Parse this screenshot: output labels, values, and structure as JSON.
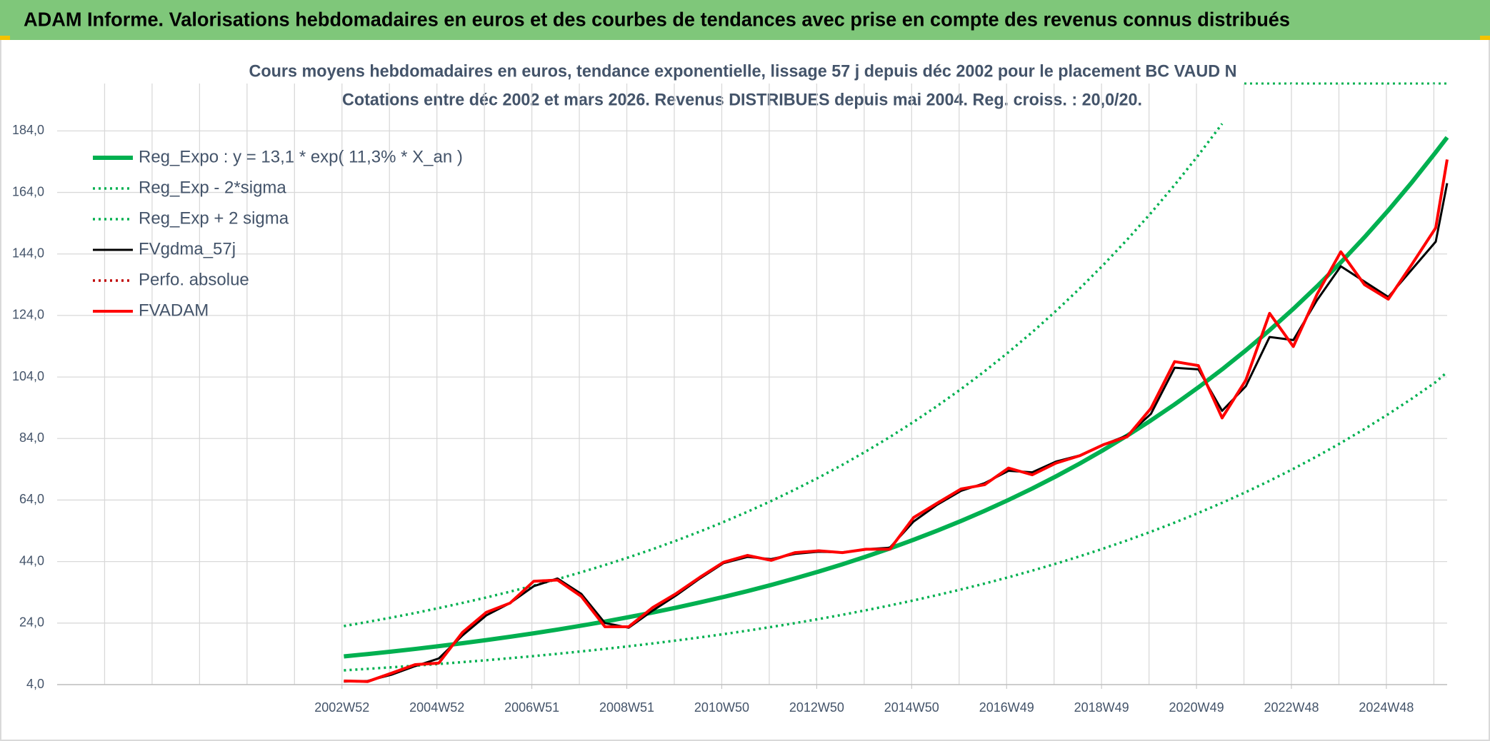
{
  "header": {
    "title": "ADAM Informe. Valorisations hebdomadaires en euros et des courbes de tendances avec prise en compte des revenus connus distribués"
  },
  "chart_data": {
    "type": "line",
    "title": "Cours moyens hebdomadaires en euros, tendance exponentielle, lissage 57 j depuis déc 2002 pour le placement BC VAUD N",
    "subtitle": "Cotations entre déc 2002 et mars 2026. Revenus DISTRIBUES depuis mai 2004. Reg. croiss. : 20,0/20.",
    "legend": "upper left",
    "grid": true,
    "xlim": [
      1996.96,
      2026.24
    ],
    "ylim": [
      4,
      199.4
    ],
    "yticks": [
      {
        "value": 4,
        "label": "4,0"
      },
      {
        "value": 24,
        "label": "24,0"
      },
      {
        "value": 44,
        "label": "44,0"
      },
      {
        "value": 64,
        "label": "64,0"
      },
      {
        "value": 84,
        "label": "84,0"
      },
      {
        "value": 104,
        "label": "104,0"
      },
      {
        "value": 124,
        "label": "124,0"
      },
      {
        "value": 144,
        "label": "144,0"
      },
      {
        "value": 164,
        "label": "164,0"
      },
      {
        "value": 184,
        "label": "184,0"
      }
    ],
    "xticks": [
      {
        "value": 2002.96,
        "label": "2002W52"
      },
      {
        "value": 2004.96,
        "label": "2004W52"
      },
      {
        "value": 2006.96,
        "label": "2006W51"
      },
      {
        "value": 2008.96,
        "label": "2008W51"
      },
      {
        "value": 2010.96,
        "label": "2010W50"
      },
      {
        "value": 2012.96,
        "label": "2012W50"
      },
      {
        "value": 2014.96,
        "label": "2014W50"
      },
      {
        "value": 2016.96,
        "label": "2016W49"
      },
      {
        "value": 2018.96,
        "label": "2018W49"
      },
      {
        "value": 2020.96,
        "label": "2020W49"
      },
      {
        "value": 2022.96,
        "label": "2022W48"
      },
      {
        "value": 2024.96,
        "label": "2024W48"
      }
    ],
    "xgrid": [
      1997.96,
      1998.96,
      1999.96,
      2000.96,
      2001.96,
      2002.96,
      2003.96,
      2004.96,
      2005.96,
      2006.96,
      2007.96,
      2008.96,
      2009.96,
      2010.96,
      2011.96,
      2012.96,
      2013.96,
      2014.96,
      2015.96,
      2016.96,
      2017.96,
      2018.96,
      2019.96,
      2020.96,
      2021.96,
      2022.96,
      2023.96,
      2024.96,
      2025.96
    ],
    "x": [
      2003,
      2003.5,
      2004,
      2004.5,
      2005,
      2005.5,
      2006,
      2006.5,
      2007,
      2007.5,
      2008,
      2008.5,
      2009,
      2009.5,
      2010,
      2010.5,
      2011,
      2011.5,
      2012,
      2012.5,
      2013,
      2013.5,
      2014,
      2014.5,
      2015,
      2015.5,
      2016,
      2016.5,
      2017,
      2017.5,
      2018,
      2018.5,
      2019,
      2019.5,
      2020,
      2020.5,
      2021,
      2021.5,
      2022,
      2022.5,
      2023,
      2023.5,
      2024,
      2024.5,
      2025,
      2025.5,
      2026,
      2026.24
    ],
    "series": [
      {
        "name": "Reg_Expo : y = 13,1 * exp( 11,3% *  X_an )",
        "color": "#00b050",
        "dash": "solid",
        "values": [
          13.16,
          13.93,
          14.73,
          15.59,
          16.5,
          17.46,
          18.47,
          19.55,
          20.68,
          21.88,
          23.16,
          24.5,
          25.93,
          27.43,
          29.03,
          30.72,
          32.5,
          34.39,
          36.39,
          38.51,
          40.74,
          43.11,
          45.62,
          48.27,
          51.08,
          54.05,
          57.19,
          60.51,
          64.03,
          67.75,
          71.69,
          75.86,
          80.27,
          84.94,
          89.88,
          95.1,
          100.63,
          106.48,
          112.67,
          119.22,
          126.15,
          133.48,
          141.24,
          149.45,
          158.14,
          167.34,
          177.06,
          181.9
        ]
      },
      {
        "name": "Reg_Exp - 2*sigma",
        "color": "#00b050",
        "dash": "dotted",
        "values": [
          8.64,
          9.12,
          9.62,
          10.15,
          10.71,
          11.3,
          11.93,
          12.58,
          13.28,
          14.01,
          14.79,
          15.6,
          16.46,
          17.37,
          18.33,
          19.34,
          20.41,
          21.54,
          22.73,
          23.98,
          25.31,
          26.7,
          28.18,
          29.73,
          31.37,
          33.11,
          34.93,
          36.86,
          38.9,
          41.05,
          43.31,
          45.7,
          48.23,
          50.89,
          53.7,
          56.67,
          59.8,
          63.1,
          66.58,
          70.26,
          74.14,
          78.23,
          82.55,
          87.11,
          91.92,
          97.0,
          102.35,
          105.6
        ]
      },
      {
        "name": "Reg_Exp + 2 sigma",
        "color": "#00b050",
        "dash": "dotted",
        "values": [
          23.03,
          24.38,
          25.78,
          27.28,
          28.88,
          30.56,
          32.32,
          34.21,
          36.19,
          38.29,
          40.53,
          42.88,
          45.38,
          48.0,
          50.8,
          53.76,
          56.88,
          60.18,
          63.68,
          67.39,
          71.3,
          75.44,
          79.84,
          84.47,
          89.39,
          94.59,
          100.08,
          105.89,
          112.05,
          118.56,
          125.46,
          132.76,
          140.47,
          148.65,
          157.29,
          166.43,
          176.1,
          186.34,
          null,
          null,
          null,
          null,
          null,
          null,
          null,
          null,
          null,
          null
        ]
      },
      {
        "name": "FVgdma_57j",
        "color": "#000000",
        "dash": "solid",
        "values": [
          5.0,
          5.2,
          7.2,
          10.0,
          12.5,
          20,
          26.5,
          30.5,
          36,
          38.5,
          33.5,
          24,
          22.5,
          28,
          33,
          38.5,
          43.5,
          45.5,
          44.8,
          46.5,
          47.2,
          47,
          48,
          48.5,
          57,
          62.5,
          67,
          69.5,
          73.5,
          73,
          76.5,
          78.5,
          82,
          85,
          92,
          107,
          106.5,
          93,
          101,
          117,
          116,
          129,
          140,
          135,
          130,
          139,
          148,
          167
        ]
      },
      {
        "name": "Perfo. absolue",
        "color": "#c00000",
        "dash": "dotted",
        "values": [
          5.2,
          5,
          7.7,
          10.5,
          11,
          21,
          27.5,
          30.5,
          37.6,
          38,
          32.7,
          22.8,
          22.8,
          29,
          33.6,
          38.9,
          43.8,
          46,
          44.4,
          46.9,
          47.5,
          46.9,
          48,
          48,
          58.3,
          63,
          67.6,
          69,
          74.4,
          72.2,
          76,
          78.4,
          82,
          84.6,
          93.8,
          109,
          107.7,
          90.7,
          103,
          124.7,
          113.9,
          130.9,
          144.7,
          134,
          129.3,
          140.7,
          152.5,
          174.7
        ]
      },
      {
        "name": "FVADAM",
        "color": "#ff0000",
        "dash": "solid",
        "values": [
          5.2,
          5,
          7.7,
          10.5,
          11,
          21,
          27.5,
          30.5,
          37.6,
          38,
          32.7,
          22.8,
          22.8,
          29,
          33.6,
          38.9,
          43.8,
          46,
          44.4,
          46.9,
          47.5,
          46.9,
          48,
          48,
          58.3,
          63,
          67.6,
          69,
          74.4,
          72.2,
          76,
          78.4,
          82,
          84.6,
          93.8,
          109,
          107.7,
          90.7,
          103,
          124.7,
          113.9,
          130.9,
          144.7,
          134,
          129.3,
          140.7,
          152.5,
          174.7
        ]
      }
    ]
  }
}
